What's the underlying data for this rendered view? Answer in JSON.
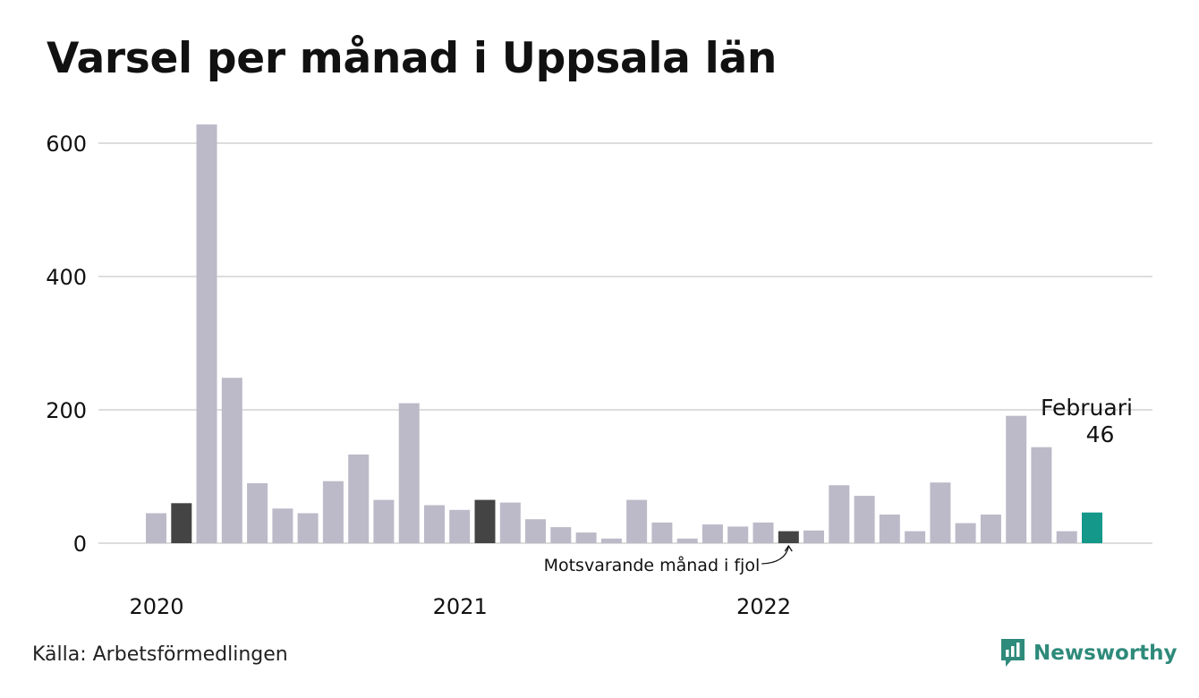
{
  "title": "Varsel per månad i Uppsala län",
  "source": "Källa: Arbetsförmedlingen",
  "brand": {
    "name": "Newsworthy",
    "icon": "newsworthy-logo-icon"
  },
  "colors": {
    "bar": "#bcbac8",
    "comparison": "#444444",
    "highlight": "#13988a",
    "grid": "#dddddd",
    "brand": "#2e8a7a"
  },
  "chart_data": {
    "type": "bar",
    "title": "Varsel per månad i Uppsala län",
    "xlabel": "",
    "ylabel": "",
    "ylim": [
      0,
      600
    ],
    "yticks": [
      0,
      200,
      400,
      600
    ],
    "grid": true,
    "year_labels": [
      {
        "index": 0,
        "label": "2020"
      },
      {
        "index": 12,
        "label": "2021"
      },
      {
        "index": 24,
        "label": "2022"
      }
    ],
    "values": [
      45,
      60,
      628,
      248,
      90,
      52,
      45,
      93,
      133,
      65,
      210,
      57,
      50,
      65,
      61,
      36,
      24,
      16,
      7,
      65,
      31,
      7,
      28,
      25,
      31,
      18,
      19,
      87,
      71,
      43,
      18,
      91,
      30,
      43,
      191,
      144,
      18,
      46
    ],
    "comparison_indices": [
      1,
      13,
      25
    ],
    "highlight_index": 37,
    "annotations": {
      "previous_year": "Motsvarande månad i fjol",
      "current_month": "Februari",
      "current_value": "46"
    }
  }
}
